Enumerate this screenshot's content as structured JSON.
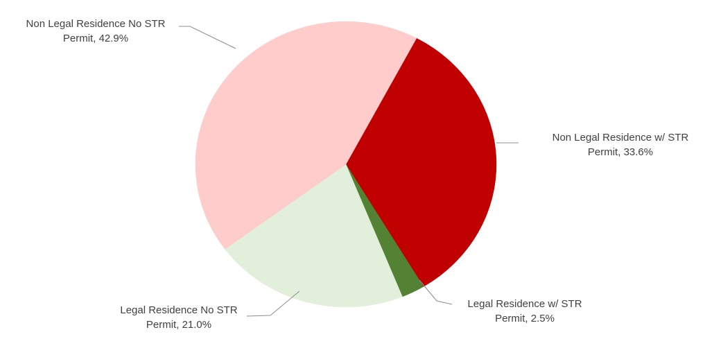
{
  "chart_data": {
    "type": "pie",
    "title": "",
    "slices": [
      {
        "label": "Non Legal Residence w/ STR Permit",
        "label_line1": "Non Legal Residence w/ STR",
        "label_line2": "Permit, 33.6%",
        "value": 33.6,
        "color": "#c00000"
      },
      {
        "label": "Legal Residence w/ STR Permit",
        "label_line1": "Legal Residence w/ STR",
        "label_line2": "Permit, 2.5%",
        "value": 2.5,
        "color": "#548235"
      },
      {
        "label": "Legal Residence No STR Permit",
        "label_line1": "Legal Residence No STR",
        "label_line2": "Permit, 21.0%",
        "value": 21.0,
        "color": "#e2efda"
      },
      {
        "label": "Non Legal Residence No STR Permit",
        "label_line1": "Non Legal Residence No STR",
        "label_line2": "Permit, 42.9%",
        "value": 42.9,
        "color": "#ffcccc"
      }
    ],
    "legend": "none",
    "data_labels": "outside-with-leader-lines"
  }
}
